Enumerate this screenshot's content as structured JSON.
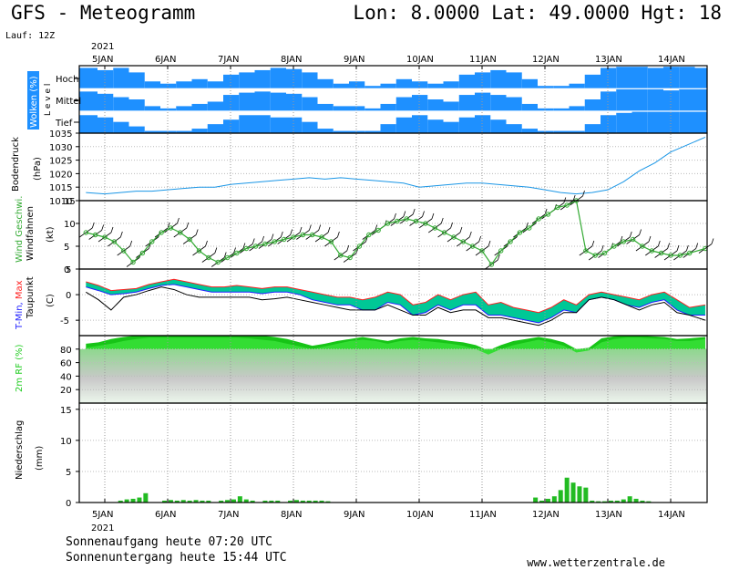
{
  "header": {
    "title_left": "GFS - Meteogramm",
    "title_right": "Lon: 8.0000  Lat: 49.0000  Hgt: 18",
    "run": "Lauf: 12Z"
  },
  "footer": {
    "sunrise": "Sonnenaufgang heute 07:20 UTC",
    "sunset": "Sonnenuntergang heute 15:44 UTC",
    "credit": "www.wetterzentrale.de"
  },
  "colors": {
    "cloud": "#1e90ff",
    "pressure": "#1a96e6",
    "wind": "#33aa33",
    "temp_fill": "#00c896",
    "tmax": "#ff2020",
    "tmin": "#2020ff",
    "dewpoint": "#000000",
    "humidity": "#22cc22",
    "precip": "#22bb22"
  },
  "chart_data": {
    "year_label": "2021",
    "day_labels": [
      "5JAN",
      "6JAN",
      "7JAN",
      "8JAN",
      "9JAN",
      "10JAN",
      "11JAN",
      "12JAN",
      "13JAN",
      "14JAN"
    ],
    "panels": [
      {
        "id": "clouds",
        "type": "heatmap",
        "ylabel": "Wolken (%)",
        "level_label": "L e v e l",
        "levels": [
          "Hoch",
          "Mittel",
          "Tief"
        ],
        "x_days": [
          4.7,
          5.0,
          5.25,
          5.5,
          5.75,
          6.0,
          6.25,
          6.5,
          6.75,
          7.0,
          7.25,
          7.5,
          7.75,
          8.0,
          8.25,
          8.5,
          8.75,
          9.0,
          9.25,
          9.5,
          9.75,
          10.0,
          10.25,
          10.5,
          10.75,
          11.0,
          11.25,
          11.5,
          11.75,
          12.0,
          12.25,
          12.5,
          12.75,
          13.0,
          13.25,
          13.5,
          13.75,
          14.0,
          14.25,
          14.5
        ],
        "hoch_pct": [
          90,
          80,
          90,
          70,
          30,
          20,
          30,
          40,
          30,
          60,
          70,
          80,
          90,
          85,
          70,
          40,
          20,
          30,
          10,
          20,
          40,
          30,
          20,
          30,
          60,
          70,
          80,
          70,
          40,
          10,
          10,
          20,
          60,
          90,
          95,
          95,
          90,
          95,
          95,
          90
        ],
        "mittel_pct": [
          85,
          75,
          60,
          50,
          20,
          10,
          20,
          30,
          40,
          70,
          80,
          85,
          80,
          75,
          60,
          30,
          20,
          20,
          10,
          30,
          60,
          70,
          50,
          40,
          70,
          80,
          70,
          60,
          30,
          10,
          10,
          20,
          50,
          85,
          95,
          95,
          95,
          90,
          95,
          95
        ],
        "tief_pct": [
          80,
          70,
          50,
          30,
          10,
          10,
          10,
          20,
          40,
          60,
          80,
          80,
          70,
          70,
          50,
          20,
          10,
          10,
          10,
          40,
          70,
          80,
          60,
          50,
          70,
          80,
          60,
          40,
          20,
          10,
          10,
          10,
          40,
          80,
          90,
          95,
          95,
          95,
          95,
          95
        ]
      },
      {
        "id": "pressure",
        "type": "line",
        "ylabel": "Bodendruck",
        "unit": "(hPa)",
        "ylim": [
          1010,
          1035
        ],
        "yticks": [
          1010,
          1015,
          1020,
          1025,
          1030,
          1035
        ],
        "x_days": [
          4.7,
          5.0,
          5.25,
          5.5,
          5.75,
          6.0,
          6.25,
          6.5,
          6.75,
          7.0,
          7.25,
          7.5,
          7.75,
          8.0,
          8.25,
          8.5,
          8.75,
          9.0,
          9.25,
          9.5,
          9.75,
          10.0,
          10.25,
          10.5,
          10.75,
          11.0,
          11.25,
          11.5,
          11.75,
          12.0,
          12.25,
          12.5,
          12.75,
          13.0,
          13.25,
          13.5,
          13.75,
          14.0,
          14.25,
          14.55
        ],
        "values": [
          1013,
          1012.5,
          1013,
          1013.5,
          1013.5,
          1014,
          1014.5,
          1015,
          1015,
          1016,
          1016.5,
          1017,
          1017.5,
          1018,
          1018.5,
          1018,
          1018.5,
          1018,
          1017.5,
          1017,
          1016.5,
          1015,
          1015.5,
          1016,
          1016.5,
          1016.5,
          1016,
          1015.5,
          1015,
          1014,
          1013,
          1012.5,
          1013,
          1014,
          1017,
          1021,
          1024,
          1028,
          1030.5,
          1033.5
        ]
      },
      {
        "id": "wind",
        "type": "line",
        "ylabel": "Wind Geschwi.",
        "ylabel2": "Windfahnen",
        "unit": "(kt)",
        "ylim": [
          0,
          15
        ],
        "yticks": [
          0,
          5,
          10,
          15
        ],
        "x_days": [
          4.7,
          4.85,
          5.0,
          5.15,
          5.3,
          5.45,
          5.6,
          5.75,
          5.9,
          6.05,
          6.2,
          6.35,
          6.5,
          6.65,
          6.8,
          6.95,
          7.1,
          7.25,
          7.4,
          7.55,
          7.7,
          7.85,
          8.0,
          8.15,
          8.3,
          8.45,
          8.6,
          8.75,
          8.9,
          9.05,
          9.2,
          9.35,
          9.5,
          9.65,
          9.8,
          9.95,
          10.1,
          10.25,
          10.4,
          10.55,
          10.7,
          10.85,
          11.0,
          11.15,
          11.3,
          11.45,
          11.6,
          11.75,
          11.9,
          12.05,
          12.2,
          12.35,
          12.5,
          12.65,
          12.8,
          12.95,
          13.1,
          13.25,
          13.4,
          13.55,
          13.7,
          13.85,
          14.0,
          14.15,
          14.3,
          14.55
        ],
        "values": [
          8,
          7.5,
          7,
          6,
          4,
          1.5,
          3.5,
          6,
          8,
          9,
          8,
          6.5,
          4,
          2.5,
          1.5,
          2.5,
          3.5,
          4.5,
          5,
          5.5,
          6,
          6.5,
          7,
          7.5,
          7.5,
          7,
          6,
          3,
          2.5,
          5,
          7.5,
          8.5,
          10,
          10.5,
          11,
          10.5,
          10,
          9,
          8,
          7,
          6,
          5,
          4,
          1,
          4,
          6,
          8,
          9,
          11,
          12,
          13.5,
          14,
          15,
          4,
          3,
          3.5,
          5,
          6,
          6.5,
          5,
          4,
          3.5,
          3,
          3,
          3.5,
          4.5
        ]
      },
      {
        "id": "temperature",
        "type": "line",
        "ylabel": "T-Min, Max",
        "ylabel2": "Taupunkt",
        "unit": "(C)",
        "ylim": [
          -8,
          5
        ],
        "yticks": [
          -5,
          0,
          5
        ],
        "x_days": [
          4.7,
          4.9,
          5.1,
          5.3,
          5.5,
          5.7,
          5.9,
          6.1,
          6.3,
          6.5,
          6.7,
          6.9,
          7.1,
          7.3,
          7.5,
          7.7,
          7.9,
          8.1,
          8.3,
          8.5,
          8.7,
          8.9,
          9.1,
          9.3,
          9.5,
          9.7,
          9.9,
          10.1,
          10.3,
          10.5,
          10.7,
          10.9,
          11.1,
          11.3,
          11.5,
          11.7,
          11.9,
          12.1,
          12.3,
          12.5,
          12.7,
          12.9,
          13.1,
          13.3,
          13.5,
          13.7,
          13.9,
          14.1,
          14.3,
          14.55
        ],
        "t_max": [
          2.5,
          1.8,
          0.8,
          1,
          1.2,
          2,
          2.5,
          3,
          2.5,
          2,
          1.5,
          1.5,
          1.8,
          1.5,
          1.2,
          1.5,
          1.5,
          1,
          0.5,
          0,
          -0.5,
          -0.5,
          -1,
          -0.5,
          0.5,
          0,
          -2,
          -1.5,
          0,
          -1,
          0,
          0.5,
          -2,
          -1.5,
          -2.5,
          -3,
          -3.5,
          -2.5,
          -1,
          -2,
          0,
          0.5,
          0,
          -0.5,
          -1,
          0,
          0.5,
          -1,
          -2.5,
          -2
        ],
        "t_min": [
          1.5,
          0.8,
          0,
          0.2,
          0.5,
          1.2,
          1.8,
          2,
          1.5,
          1,
          0.5,
          0.5,
          0.5,
          0.5,
          0.2,
          0.5,
          0.5,
          0,
          -1,
          -1.5,
          -2,
          -2,
          -3,
          -3,
          -1.5,
          -2,
          -4,
          -3.5,
          -2,
          -3,
          -2,
          -2,
          -4,
          -4,
          -4.5,
          -5,
          -5.5,
          -4.5,
          -3,
          -3.5,
          -1,
          -0.5,
          -1,
          -2,
          -2.5,
          -1.5,
          -1,
          -3,
          -4,
          -4
        ],
        "dewpoint": [
          0.5,
          -1,
          -3,
          -0.5,
          0,
          0.8,
          1.5,
          1,
          0,
          -0.5,
          -0.5,
          -0.5,
          -0.5,
          -0.5,
          -1,
          -0.8,
          -0.5,
          -1,
          -1.5,
          -2,
          -2.5,
          -3,
          -3,
          -3,
          -2,
          -3,
          -4,
          -4,
          -2.5,
          -3.5,
          -3,
          -3,
          -4.5,
          -4.5,
          -5,
          -5.5,
          -6,
          -5,
          -3.5,
          -3.5,
          -1,
          -0.5,
          -1,
          -2,
          -3,
          -2,
          -1.5,
          -3.5,
          -4,
          -5
        ]
      },
      {
        "id": "humidity",
        "type": "area",
        "ylabel": "2m RF (%)",
        "ylim": [
          0,
          100
        ],
        "yticks": [
          20,
          40,
          60,
          80
        ],
        "x_days": [
          4.7,
          4.9,
          5.1,
          5.3,
          5.5,
          5.7,
          5.9,
          6.1,
          6.3,
          6.5,
          6.7,
          6.9,
          7.1,
          7.3,
          7.5,
          7.7,
          7.9,
          8.1,
          8.3,
          8.5,
          8.7,
          8.9,
          9.1,
          9.3,
          9.5,
          9.7,
          9.9,
          10.1,
          10.3,
          10.5,
          10.7,
          10.9,
          11.1,
          11.3,
          11.5,
          11.7,
          11.9,
          12.1,
          12.3,
          12.5,
          12.7,
          12.9,
          13.1,
          13.3,
          13.5,
          13.7,
          13.9,
          14.1,
          14.3,
          14.55
        ],
        "values": [
          88,
          90,
          95,
          98,
          100,
          100,
          100,
          100,
          100,
          100,
          100,
          100,
          100,
          100,
          100,
          98,
          95,
          90,
          85,
          88,
          92,
          95,
          98,
          95,
          92,
          96,
          98,
          96,
          95,
          92,
          90,
          86,
          78,
          86,
          92,
          95,
          98,
          95,
          90,
          80,
          82,
          96,
          99,
          100,
          100,
          99,
          98,
          95,
          96,
          98
        ],
        "values2": [
          82,
          85,
          88,
          92,
          95,
          97,
          97,
          97,
          97,
          97,
          97,
          97,
          97,
          96,
          94,
          92,
          88,
          84,
          80,
          84,
          88,
          92,
          94,
          92,
          88,
          92,
          94,
          92,
          90,
          88,
          85,
          80,
          72,
          80,
          86,
          90,
          94,
          90,
          85,
          75,
          78,
          90,
          95,
          97,
          97,
          96,
          95,
          92,
          92,
          95
        ]
      },
      {
        "id": "precip",
        "type": "bar",
        "ylabel": "Niederschlag",
        "unit": "(mm)",
        "ylim": [
          0,
          16
        ],
        "yticks": [
          0,
          5,
          10,
          15
        ],
        "x_days": [
          5.25,
          5.35,
          5.45,
          5.55,
          5.65,
          5.95,
          6.05,
          6.15,
          6.25,
          6.35,
          6.45,
          6.55,
          6.65,
          6.85,
          6.95,
          7.05,
          7.15,
          7.25,
          7.35,
          7.55,
          7.65,
          7.75,
          7.95,
          8.05,
          8.15,
          8.25,
          8.35,
          8.45,
          8.55,
          11.85,
          11.95,
          12.05,
          12.15,
          12.25,
          12.35,
          12.45,
          12.55,
          12.65,
          12.75,
          12.85,
          12.95,
          13.05,
          13.15,
          13.25,
          13.35,
          13.45,
          13.55,
          13.65
        ],
        "values": [
          0.3,
          0.5,
          0.6,
          0.8,
          1.5,
          0.3,
          0.4,
          0.3,
          0.4,
          0.3,
          0.4,
          0.3,
          0.3,
          0.3,
          0.4,
          0.5,
          1.0,
          0.5,
          0.3,
          0.3,
          0.3,
          0.3,
          0.3,
          0.4,
          0.3,
          0.3,
          0.3,
          0.3,
          0.2,
          0.8,
          0.3,
          0.6,
          1.0,
          2.0,
          4.0,
          3.2,
          2.6,
          2.4,
          0.3,
          0.2,
          0.2,
          0.3,
          0.3,
          0.5,
          1.0,
          0.6,
          0.3,
          0.2
        ]
      }
    ]
  }
}
